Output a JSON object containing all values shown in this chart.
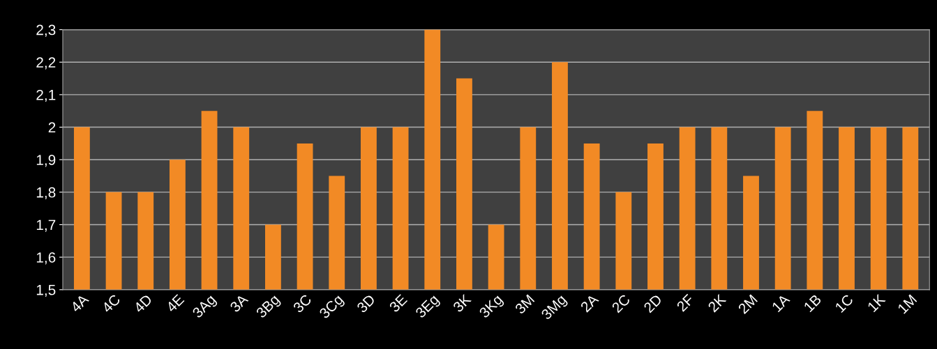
{
  "chart_data": {
    "type": "bar",
    "categories": [
      "4A",
      "4C",
      "4D",
      "4E",
      "3Ag",
      "3A",
      "3Bg",
      "3C",
      "3Cg",
      "3D",
      "3E",
      "3Eg",
      "3K",
      "3Kg",
      "3M",
      "3Mg",
      "2A",
      "2C",
      "2D",
      "2F",
      "2K",
      "2M",
      "1A",
      "1B",
      "1C",
      "1K",
      "1M"
    ],
    "values": [
      2,
      1.8,
      1.8,
      1.9,
      2.05,
      2,
      1.7,
      1.95,
      1.85,
      2,
      2,
      2.3,
      2.15,
      1.7,
      2,
      2.2,
      1.95,
      1.8,
      1.95,
      2,
      2,
      1.85,
      2,
      2.05,
      2,
      2,
      2
    ],
    "color": "#f28a25",
    "ylim": [
      1.5,
      2.3
    ],
    "yticks": [
      {
        "value": 1.5,
        "label": "1,5"
      },
      {
        "value": 1.6,
        "label": "1,6"
      },
      {
        "value": 1.7,
        "label": "1,7"
      },
      {
        "value": 1.8,
        "label": "1,8"
      },
      {
        "value": 1.9,
        "label": "1,9"
      },
      2,
      {
        "value": 2.1,
        "label": "2,1"
      },
      {
        "value": 2.2,
        "label": "2,2"
      },
      {
        "value": 2.3,
        "label": "2,3"
      }
    ],
    "grid": "y"
  }
}
